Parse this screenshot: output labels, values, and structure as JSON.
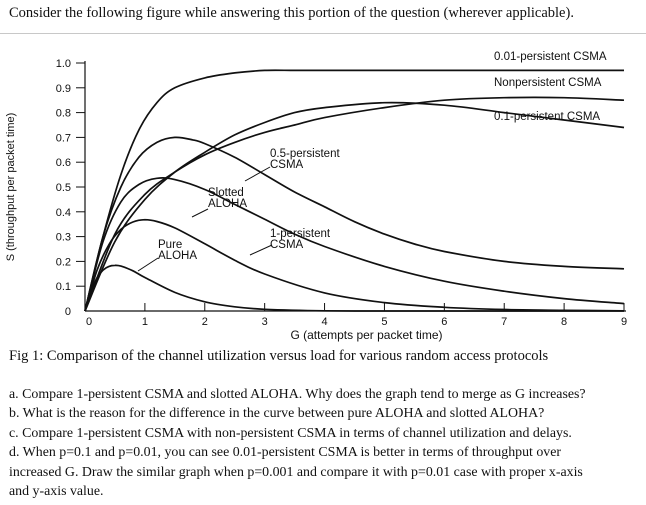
{
  "intro": "Consider the following figure while answering this portion of the question (wherever applicable).",
  "caption": "Fig 1: Comparison of the channel utilization versus load for various random access protocols",
  "questions": [
    "a. Compare 1-persistent CSMA and slotted ALOHA. Why does the graph tend to merge as G increases?",
    "b. What is the reason for the difference in the curve between pure ALOHA and slotted ALOHA?",
    "c. Compare 1-persistent CSMA with non-persistent CSMA in terms of channel utilization and delays.",
    "d. When p=0.1 and p=0.01, you can see 0.01-persistent CSMA is better in terms of throughput over",
    "increased G. Draw the similar graph when p=0.001 and compare it with p=0.01 case with proper x-axis",
    "and y-axis value."
  ],
  "chart_data": {
    "type": "line",
    "title": "",
    "xlabel": "G (attempts per packet time)",
    "ylabel": "S (throughput per packet time)",
    "xlim": [
      0,
      9
    ],
    "ylim": [
      0,
      1.0
    ],
    "x_ticks": [
      "0",
      "1",
      "2",
      "3",
      "4",
      "5",
      "6",
      "7",
      "8",
      "9"
    ],
    "y_ticks": [
      "0",
      "0.1",
      "0.2",
      "0.3",
      "0.4",
      "0.5",
      "0.6",
      "0.7",
      "0.8",
      "0.9",
      "1.0"
    ],
    "series": [
      {
        "name": "Pure ALOHA",
        "label": "Pure\nALOHA",
        "x": [
          0,
          0.1,
          0.2,
          0.3,
          0.4,
          0.5,
          0.6,
          0.8,
          1.0,
          1.5,
          2.0,
          2.5,
          3.0,
          4.0,
          5.0,
          6.0,
          7.0,
          8.0,
          9.0
        ],
        "y": [
          0,
          0.082,
          0.134,
          0.165,
          0.18,
          0.184,
          0.181,
          0.162,
          0.135,
          0.075,
          0.037,
          0.017,
          0.007,
          0.001,
          0,
          0,
          0,
          0,
          0
        ]
      },
      {
        "name": "Slotted ALOHA",
        "label": "Slotted\nALOHA",
        "x": [
          0,
          0.2,
          0.4,
          0.6,
          0.8,
          1.0,
          1.2,
          1.5,
          2.0,
          2.5,
          3.0,
          4.0,
          5.0,
          6.0,
          7.0,
          8.0,
          9.0
        ],
        "y": [
          0,
          0.164,
          0.268,
          0.329,
          0.359,
          0.368,
          0.361,
          0.335,
          0.271,
          0.205,
          0.149,
          0.073,
          0.034,
          0.015,
          0.006,
          0.003,
          0.001
        ]
      },
      {
        "name": "1-persistent CSMA",
        "label": "1-persistent\nCSMA",
        "x": [
          0,
          0.3,
          0.6,
          0.9,
          1.2,
          1.5,
          2.0,
          2.5,
          3.0,
          3.5,
          4.0,
          5.0,
          6.0,
          7.0,
          8.0,
          9.0
        ],
        "y": [
          0,
          0.28,
          0.44,
          0.51,
          0.535,
          0.53,
          0.49,
          0.43,
          0.37,
          0.31,
          0.26,
          0.18,
          0.12,
          0.08,
          0.05,
          0.03
        ]
      },
      {
        "name": "0.5-persistent CSMA",
        "label": "0.5-persistent\nCSMA",
        "x": [
          0,
          0.3,
          0.6,
          0.9,
          1.2,
          1.5,
          1.8,
          2.0,
          2.5,
          3.0,
          3.5,
          4.0,
          4.5,
          5.0,
          5.5,
          6.0,
          7.0,
          8.0,
          9.0
        ],
        "y": [
          0,
          0.3,
          0.5,
          0.62,
          0.68,
          0.7,
          0.69,
          0.675,
          0.62,
          0.55,
          0.48,
          0.42,
          0.36,
          0.31,
          0.27,
          0.24,
          0.2,
          0.18,
          0.17
        ]
      },
      {
        "name": "0.1-persistent CSMA",
        "label": "0.1-persistent CSMA",
        "x": [
          0,
          0.5,
          1.0,
          1.5,
          2.0,
          2.5,
          3.0,
          3.5,
          4.0,
          5.0,
          6.0,
          7.0,
          8.0,
          9.0
        ],
        "y": [
          0,
          0.28,
          0.45,
          0.56,
          0.64,
          0.71,
          0.76,
          0.8,
          0.82,
          0.84,
          0.83,
          0.8,
          0.77,
          0.74
        ]
      },
      {
        "name": "Nonpersistent CSMA",
        "label": "Nonpersistent CSMA",
        "x": [
          0,
          0.5,
          1.0,
          1.5,
          2.0,
          2.5,
          3.0,
          3.5,
          4.0,
          5.0,
          6.0,
          7.0,
          8.0,
          9.0
        ],
        "y": [
          0,
          0.31,
          0.47,
          0.56,
          0.63,
          0.68,
          0.72,
          0.75,
          0.78,
          0.82,
          0.85,
          0.86,
          0.86,
          0.85
        ]
      },
      {
        "name": "0.01-persistent CSMA",
        "label": "0.01-persistent CSMA",
        "x": [
          0,
          0.3,
          0.6,
          0.9,
          1.2,
          1.5,
          2.0,
          2.5,
          3.0,
          3.5,
          4.0,
          5.0,
          6.0,
          7.0,
          8.0,
          9.0
        ],
        "y": [
          0,
          0.3,
          0.55,
          0.73,
          0.84,
          0.9,
          0.94,
          0.96,
          0.97,
          0.97,
          0.97,
          0.97,
          0.97,
          0.97,
          0.97,
          0.97
        ]
      }
    ]
  }
}
